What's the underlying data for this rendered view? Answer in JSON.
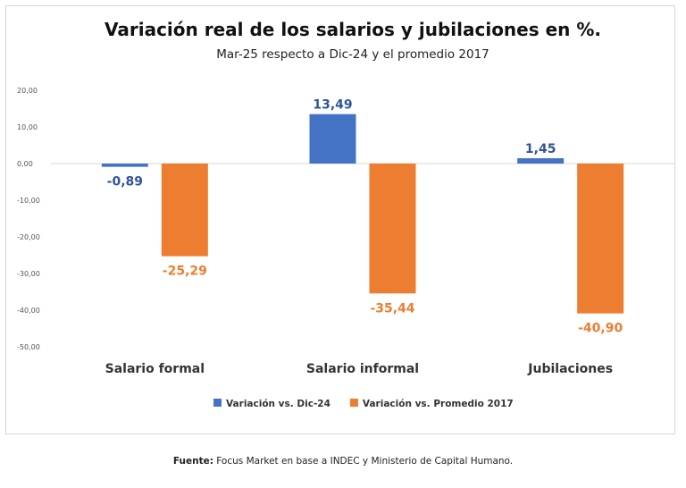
{
  "chart_data": {
    "type": "bar",
    "title": "Variación real de los salarios y jubilaciones en %.",
    "subtitle": "Mar-25 respecto a Dic-24 y el promedio 2017",
    "categories": [
      "Salario formal",
      "Salario informal",
      "Jubilaciones"
    ],
    "series": [
      {
        "name": "Variación vs. Dic-24",
        "color": "#4472c4",
        "values": [
          -0.89,
          13.49,
          1.45
        ],
        "labels": [
          "-0,89",
          "13,49",
          "1,45"
        ]
      },
      {
        "name": "Variación vs. Promedio 2017",
        "color": "#ed7d31",
        "values": [
          -25.29,
          -35.44,
          -40.9
        ],
        "labels": [
          "-25,29",
          "-35,44",
          "-40,90"
        ]
      }
    ],
    "y_ticks": [
      "20,00",
      "10,00",
      "0,00",
      "-10,00",
      "-20,00",
      "-30,00",
      "-40,00",
      "-50,00"
    ],
    "y_tick_values": [
      20,
      10,
      0,
      -10,
      -20,
      -30,
      -40,
      -50
    ],
    "ylim": [
      -50,
      20
    ],
    "label_colors": {
      "Variación vs. Dic-24": "#2f5597",
      "Variación vs. Promedio 2017": "#ed7d31"
    },
    "grid": false,
    "legend_position": "bottom"
  },
  "source": {
    "label": "Fuente:",
    "text": " Focus Market en base a INDEC y Ministerio de Capital Humano."
  }
}
